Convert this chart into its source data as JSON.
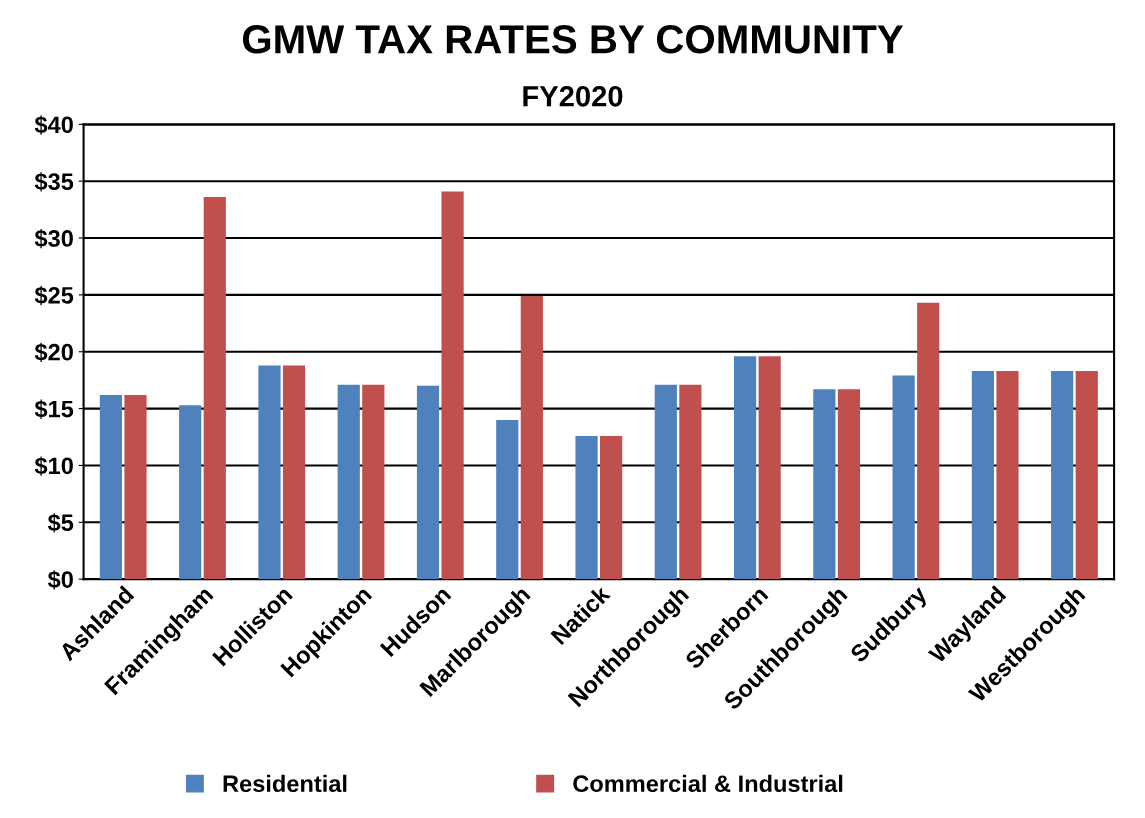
{
  "chart_data": {
    "type": "bar",
    "title": "GMW TAX RATES BY COMMUNITY",
    "subtitle": "FY2020",
    "categories": [
      "Ashland",
      "Framingham",
      "Holliston",
      "Hopkinton",
      "Hudson",
      "Marlborough",
      "Natick",
      "Northborough",
      "Sherborn",
      "Southborough",
      "Sudbury",
      "Wayland",
      "Westborough"
    ],
    "series": [
      {
        "name": "Residential",
        "color": "#4f81bd",
        "values": [
          16.2,
          15.3,
          18.8,
          17.1,
          17.0,
          14.0,
          12.6,
          17.1,
          19.6,
          16.7,
          17.9,
          18.3,
          18.3
        ]
      },
      {
        "name": "Commercial & Industrial",
        "color": "#c0504d",
        "values": [
          16.2,
          33.6,
          18.8,
          17.1,
          34.1,
          24.9,
          12.6,
          17.1,
          19.6,
          16.7,
          24.3,
          18.3,
          18.3
        ]
      }
    ],
    "ylim": [
      0,
      40
    ],
    "yticks": [
      {
        "value": 0,
        "label": "$0"
      },
      {
        "value": 5,
        "label": "$5"
      },
      {
        "value": 10,
        "label": "$10"
      },
      {
        "value": 15,
        "label": "$15"
      },
      {
        "value": 20,
        "label": "$20"
      },
      {
        "value": 25,
        "label": "$25"
      },
      {
        "value": 30,
        "label": "$30"
      },
      {
        "value": 35,
        "label": "$35"
      },
      {
        "value": 40,
        "label": "$40"
      }
    ],
    "grid": "y",
    "legend": "bottom"
  }
}
